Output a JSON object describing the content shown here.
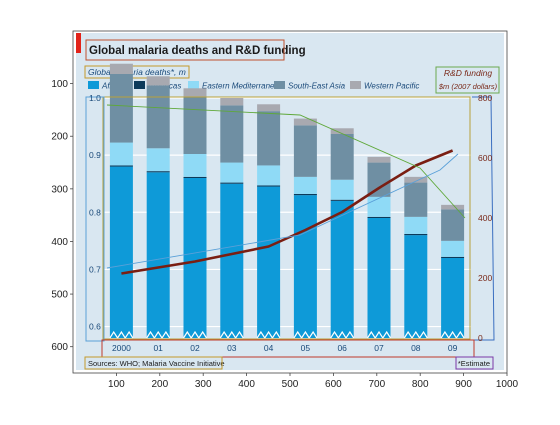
{
  "chart_data": {
    "type": "bar",
    "title": "Global malaria deaths and R&D funding",
    "subtitle": "Global malaria deaths*, m",
    "right_axis_title": "R&D funding",
    "right_axis_subtitle": "$m (2007 dollars)",
    "source": "Sources: WHO; Malaria Vaccine Initiative",
    "footnote": "*Estimate",
    "legend_position": "top",
    "categories": [
      "2000",
      "01",
      "02",
      "03",
      "04",
      "05",
      "06",
      "07",
      "08",
      "09"
    ],
    "left_axis": {
      "ticks": [
        "1.0",
        "0.9",
        "0.8",
        "0.7",
        "0.6"
      ],
      "ylim": [
        0.58,
        1.0
      ]
    },
    "right_axis": {
      "ticks": [
        "800",
        "600",
        "400",
        "200",
        "0"
      ],
      "ylim": [
        0,
        800
      ]
    },
    "bar_series": [
      {
        "name": "Africa",
        "color": "#0e9ad8",
        "values": [
          0.88,
          0.87,
          0.86,
          0.85,
          0.845,
          0.83,
          0.82,
          0.79,
          0.76,
          0.72
        ]
      },
      {
        "name": "Americas",
        "color": "#0c3a5a",
        "values": [
          0.002,
          0.002,
          0.002,
          0.002,
          0.002,
          0.002,
          0.002,
          0.002,
          0.002,
          0.002
        ]
      },
      {
        "name": "Eastern Mediterranean",
        "color": "#8fdaf6",
        "values": [
          0.04,
          0.04,
          0.04,
          0.035,
          0.035,
          0.03,
          0.035,
          0.035,
          0.03,
          0.028
        ]
      },
      {
        "name": "South-East Asia",
        "color": "#6f8fa3",
        "values": [
          0.12,
          0.11,
          0.1,
          0.1,
          0.095,
          0.09,
          0.08,
          0.06,
          0.06,
          0.055
        ]
      },
      {
        "name": "Western Pacific",
        "color": "#a8a9b0",
        "values": [
          0.018,
          0.016,
          0.015,
          0.013,
          0.012,
          0.012,
          0.01,
          0.01,
          0.01,
          0.008
        ]
      }
    ],
    "line_series": [
      {
        "name": "R&D funding",
        "color": "#7a1e12",
        "values": [
          215,
          235,
          255,
          280,
          305,
          360,
          420,
          500,
          575,
          625
        ]
      }
    ],
    "outer_axes": {
      "x": {
        "ticks": [
          "100",
          "200",
          "300",
          "400",
          "500",
          "600",
          "700",
          "800",
          "900",
          "1000"
        ],
        "xlim": [
          0,
          1000
        ]
      },
      "y": {
        "ticks": [
          "100",
          "200",
          "300",
          "400",
          "500",
          "600"
        ],
        "ylim": [
          650,
          0
        ]
      }
    },
    "colors": {
      "panel": "#d9e7f1",
      "accent_red": "#e2231a",
      "gridline": "#ffffff"
    }
  }
}
